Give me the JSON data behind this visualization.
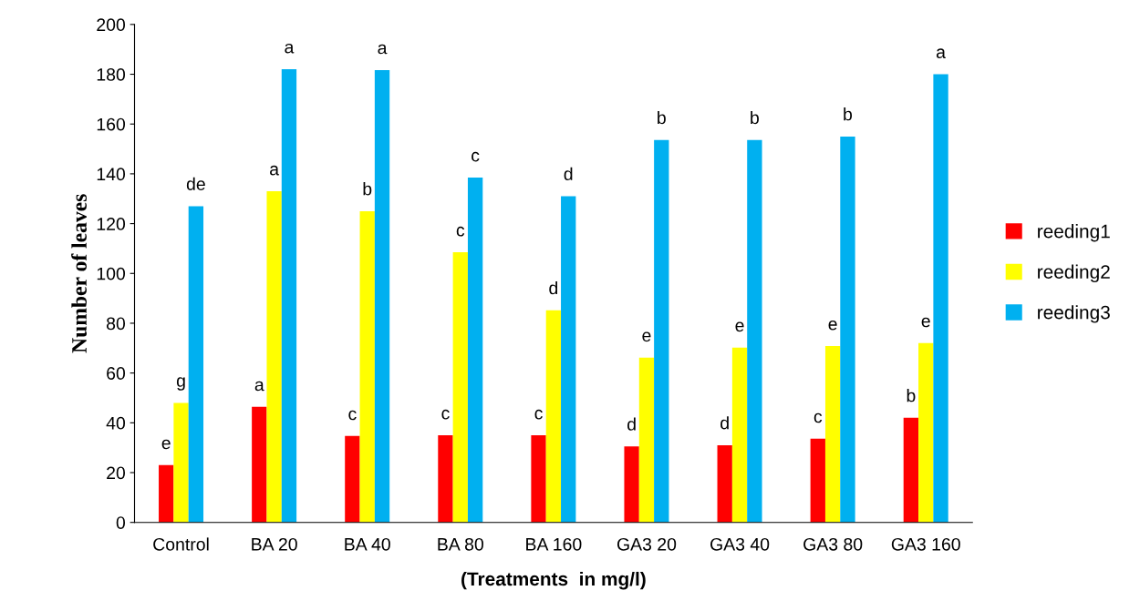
{
  "chart_data": {
    "type": "bar",
    "ylabel": "Number of leaves",
    "xlabel": "(Treatments  in mg/l)",
    "categories": [
      "Control",
      "BA 20",
      "BA 40",
      "BA 80",
      "BA 160",
      "GA3 20",
      "GA3 40",
      "GA3 80",
      "GA3 160"
    ],
    "series": [
      {
        "name": "reeding1",
        "color": "#ff0000",
        "values": [
          23,
          46.4,
          34.7,
          35,
          35,
          30.5,
          31,
          33.6,
          42
        ],
        "value_labels": [
          "e",
          "a",
          "c",
          "c",
          "c",
          "d",
          "d",
          "c",
          "b"
        ]
      },
      {
        "name": "reeding2",
        "color": "#ffff00",
        "values": [
          48,
          133,
          125,
          108.5,
          85.2,
          66.2,
          70.2,
          70.8,
          72
        ],
        "value_labels": [
          "g",
          "a",
          "b",
          "c",
          "d",
          "e",
          "e",
          "e",
          "e"
        ]
      },
      {
        "name": "reeding3",
        "color": "#00b0f0",
        "values": [
          127,
          182,
          181.7,
          138.5,
          131,
          153.6,
          153.6,
          155,
          180
        ],
        "value_labels": [
          "de",
          "a",
          "a",
          "c",
          "d",
          "b",
          "b",
          "b",
          "a"
        ]
      }
    ],
    "ylim": [
      0,
      200
    ],
    "yticks": [
      0,
      20,
      40,
      60,
      80,
      100,
      120,
      140,
      160,
      180,
      200
    ],
    "grid": false,
    "legend": "right"
  }
}
